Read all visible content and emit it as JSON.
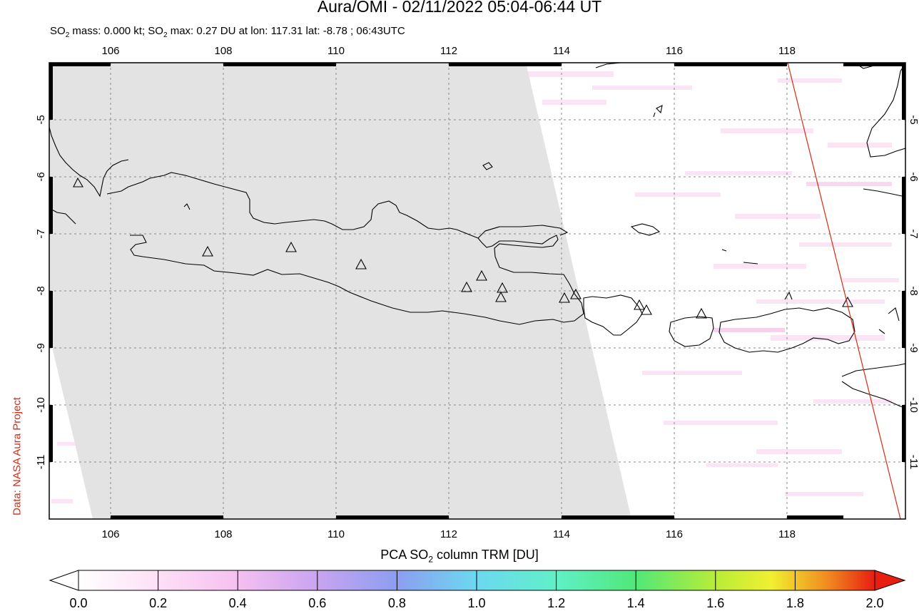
{
  "title": "Aura/OMI - 02/11/2022 05:04-06:44 UT",
  "subtitle": {
    "mass_prefix": "SO",
    "mass_sub": "2",
    "mass_text": " mass: 0.000 kt; SO",
    "max_sub": "2",
    "max_text": " max: 0.27 DU at lon: 117.31 lat: -8.78 ; 06:43UTC"
  },
  "credit": "Data: NASA Aura Project",
  "map": {
    "lon_ticks": [
      "106",
      "108",
      "110",
      "112",
      "114",
      "116",
      "118"
    ],
    "lat_ticks": [
      "-5",
      "-6",
      "-7",
      "-8",
      "-9",
      "-10",
      "-11"
    ],
    "lon_range": [
      105,
      120
    ],
    "lat_range": [
      -12,
      -4
    ],
    "volcano_marker": "triangle-outline",
    "orbit_line_color": "#d62a14",
    "no_data_color": "#e3e3e3"
  },
  "colorbar": {
    "label_prefix": "PCA SO",
    "label_sub": "2",
    "label_suffix": " column TRM [DU]",
    "ticks": [
      "0.0",
      "0.2",
      "0.4",
      "0.6",
      "0.8",
      "1.0",
      "1.2",
      "1.4",
      "1.6",
      "1.8",
      "2.0"
    ],
    "min": 0,
    "max": 2,
    "colors": [
      "#ffffff",
      "#f5c0f0",
      "#c8a4f0",
      "#8c9ef0",
      "#6cd8f0",
      "#6cf0c0",
      "#50e878",
      "#a8ec38",
      "#f0f030",
      "#f08c20",
      "#e81e10"
    ]
  }
}
